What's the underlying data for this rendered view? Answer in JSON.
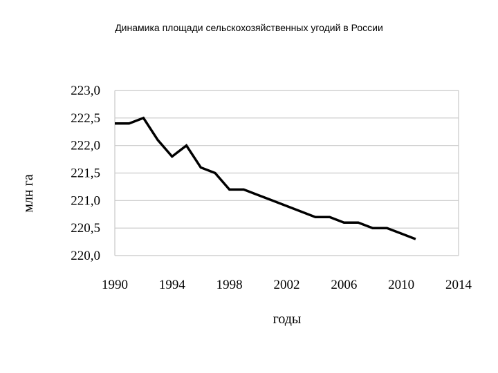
{
  "chart_data": {
    "type": "line",
    "title": "Динамика площади сельскохозяйственных угодий  в России",
    "xlabel": "годы",
    "ylabel": "млн га",
    "xlim": [
      1990,
      2014
    ],
    "ylim": [
      220.0,
      223.0
    ],
    "x_ticks": [
      "1990",
      "1994",
      "1998",
      "2002",
      "2006",
      "2010",
      "2014"
    ],
    "y_ticks": [
      "223,0",
      "222,5",
      "222,0",
      "221,5",
      "221,0",
      "220,5",
      "220,0"
    ],
    "grid": true,
    "series": [
      {
        "x": [
          1990,
          1991,
          1992,
          1993,
          1994,
          1995,
          1996,
          1997,
          1998,
          1999,
          2000,
          2001,
          2002,
          2003,
          2004,
          2005,
          2006,
          2007,
          2008,
          2009,
          2010,
          2011
        ],
        "values": [
          222.4,
          222.4,
          222.5,
          222.1,
          221.8,
          222.0,
          221.6,
          221.5,
          221.2,
          221.2,
          221.1,
          221.0,
          220.9,
          220.8,
          220.7,
          220.7,
          220.6,
          220.6,
          220.5,
          220.5,
          220.4,
          220.3
        ],
        "color": "#000000"
      }
    ]
  }
}
